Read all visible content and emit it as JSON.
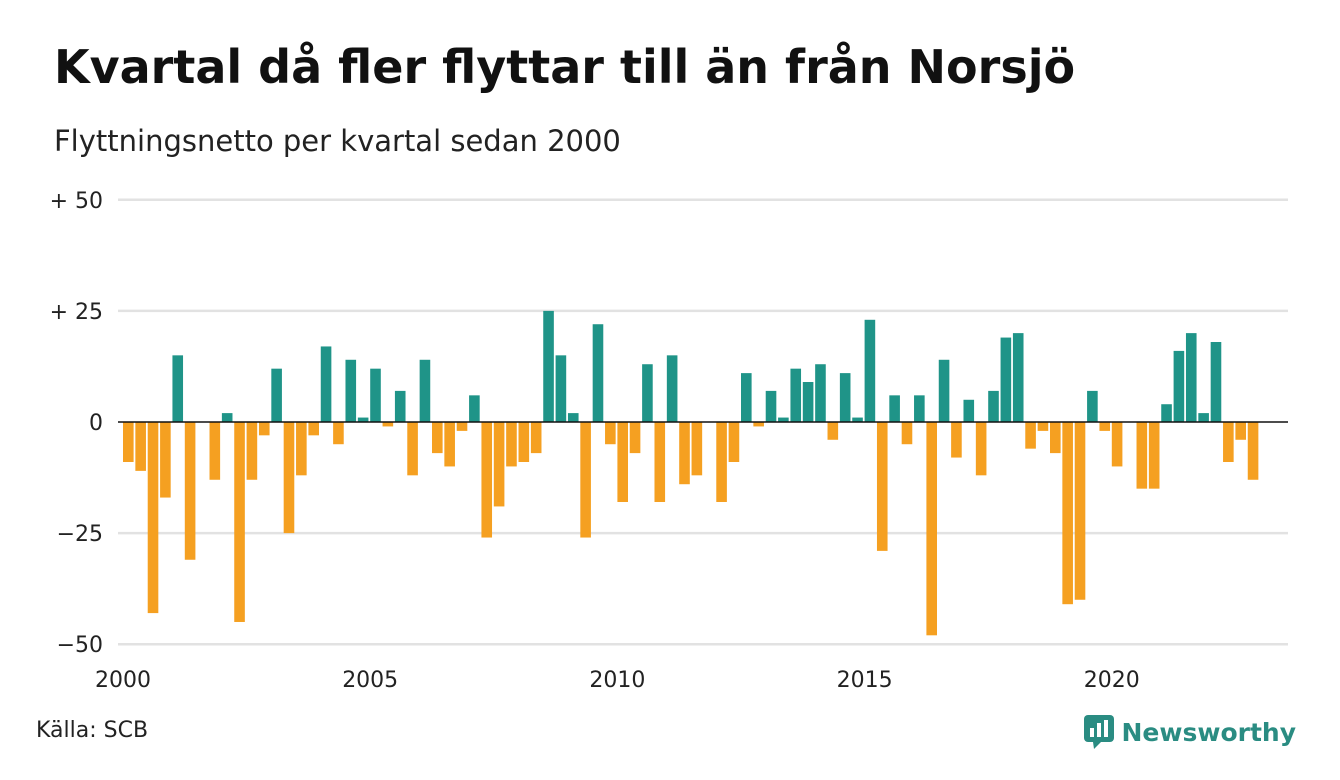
{
  "title": "Kvartal då fler flyttar till än från Norsjö",
  "subtitle": "Flyttningsnetto per kvartal sedan 2000",
  "source": "Källa: SCB",
  "brand": {
    "name": "Newsworthy",
    "icon": "newsworthy-logo-icon"
  },
  "colors": {
    "positive": "#1f9488",
    "negative": "#f5a021",
    "grid": "#e2e2e2",
    "zero_line": "#111111"
  },
  "chart_data": {
    "type": "bar",
    "title": "Kvartal då fler flyttar till än från Norsjö",
    "subtitle": "Flyttningsnetto per kvartal sedan 2000",
    "start": {
      "year": 2000,
      "quarter": 1
    },
    "x_ticks": [
      "2000",
      "2005",
      "2010",
      "2015",
      "2020"
    ],
    "y_ticks": [
      {
        "value": 50,
        "label": "+ 50"
      },
      {
        "value": 25,
        "label": "+ 25"
      },
      {
        "value": 0,
        "label": "0"
      },
      {
        "value": -25,
        "label": "−25"
      },
      {
        "value": -50,
        "label": "−50"
      }
    ],
    "ylim": [
      -50,
      50
    ],
    "grid": true,
    "values": [
      -9,
      -11,
      -43,
      -17,
      15,
      -31,
      0,
      -13,
      2,
      -45,
      -13,
      -3,
      12,
      -25,
      -12,
      -3,
      17,
      -5,
      14,
      1,
      12,
      -1,
      7,
      -12,
      14,
      -7,
      -10,
      -2,
      6,
      -26,
      -19,
      -10,
      -9,
      -7,
      25,
      15,
      2,
      -26,
      22,
      -5,
      -18,
      -7,
      13,
      -18,
      15,
      -14,
      -12,
      0,
      -18,
      -9,
      11,
      -1,
      7,
      1,
      12,
      9,
      13,
      -4,
      11,
      1,
      23,
      -29,
      6,
      -5,
      6,
      -48,
      14,
      -8,
      5,
      -12,
      7,
      19,
      20,
      -6,
      -2,
      -7,
      -41,
      -40,
      7,
      -2,
      -10,
      0,
      -15,
      -15,
      4,
      16,
      20,
      2,
      18,
      -9,
      -4,
      -13
    ]
  }
}
